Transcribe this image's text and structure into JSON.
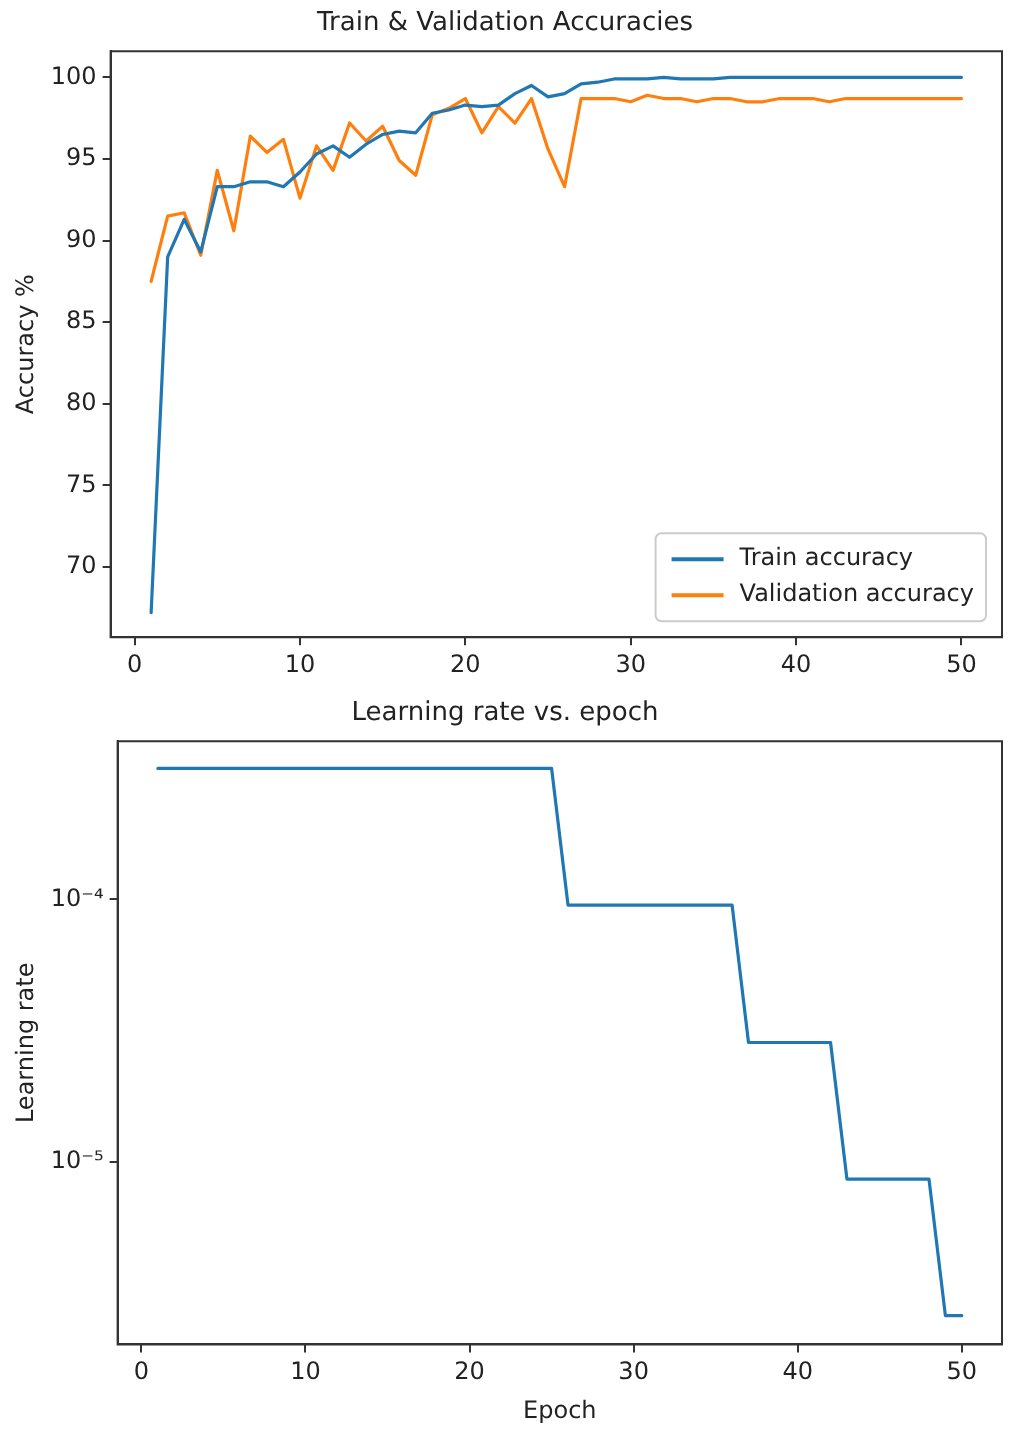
{
  "chart_data": [
    {
      "type": "line",
      "title": "Train & Validation Accuracies",
      "ylabel": "Accuracy %",
      "x": [
        1,
        2,
        3,
        4,
        5,
        6,
        7,
        8,
        9,
        10,
        11,
        12,
        13,
        14,
        15,
        16,
        17,
        18,
        19,
        20,
        21,
        22,
        23,
        24,
        25,
        26,
        27,
        28,
        29,
        30,
        31,
        32,
        33,
        34,
        35,
        36,
        37,
        38,
        39,
        40,
        41,
        42,
        43,
        44,
        45,
        46,
        47,
        48,
        49,
        50
      ],
      "series": [
        {
          "name": "Train accuracy",
          "color": "#1f77b4",
          "values": [
            67.2,
            89.0,
            91.3,
            89.3,
            93.3,
            93.3,
            93.6,
            93.6,
            93.3,
            94.2,
            95.3,
            95.8,
            95.1,
            95.9,
            96.5,
            96.7,
            96.6,
            97.8,
            98.0,
            98.3,
            98.2,
            98.3,
            99.0,
            99.5,
            98.8,
            99.0,
            99.6,
            99.7,
            99.9,
            99.9,
            99.9,
            100,
            99.9,
            99.9,
            99.9,
            100,
            100,
            100,
            100,
            100,
            100,
            100,
            100,
            100,
            100,
            100,
            100,
            100,
            100,
            100
          ]
        },
        {
          "name": "Validation accuracy",
          "color": "#ff7f0e",
          "values": [
            87.5,
            91.5,
            91.7,
            89.1,
            94.3,
            90.6,
            96.4,
            95.4,
            96.2,
            92.6,
            95.8,
            94.3,
            97.2,
            96.1,
            97.0,
            94.9,
            94.0,
            97.7,
            98.1,
            98.7,
            96.6,
            98.2,
            97.2,
            98.7,
            95.6,
            93.3,
            98.7,
            98.7,
            98.7,
            98.5,
            98.9,
            98.7,
            98.7,
            98.5,
            98.7,
            98.7,
            98.5,
            98.5,
            98.7,
            98.7,
            98.7,
            98.5,
            98.7,
            98.7,
            98.7,
            98.7,
            98.7,
            98.7,
            98.7,
            98.7
          ]
        }
      ],
      "xlim": [
        -1.45,
        52.45
      ],
      "xticks": [
        0,
        10,
        20,
        30,
        40,
        50
      ],
      "ylim": [
        65.7,
        101.6
      ],
      "yticks": [
        70,
        75,
        80,
        85,
        90,
        95,
        100
      ],
      "legend": "bottom right",
      "grid": false,
      "marker": "none",
      "line_style": "solid"
    },
    {
      "type": "line",
      "title": "Learning rate vs. epoch",
      "xlabel": "Epoch",
      "ylabel": "Learning rate",
      "log": "y",
      "x": [
        1,
        2,
        3,
        4,
        5,
        6,
        7,
        8,
        9,
        10,
        11,
        12,
        13,
        14,
        15,
        16,
        17,
        18,
        19,
        20,
        21,
        22,
        23,
        24,
        25,
        26,
        27,
        28,
        29,
        30,
        31,
        32,
        33,
        34,
        35,
        36,
        37,
        38,
        39,
        40,
        41,
        42,
        43,
        44,
        45,
        46,
        47,
        48,
        49,
        50
      ],
      "series": [
        {
          "color": "#1f77b4",
          "values": [
            0.000315,
            0.000315,
            0.000315,
            0.000315,
            0.000315,
            0.000315,
            0.000315,
            0.000315,
            0.000315,
            0.000315,
            0.000315,
            0.000315,
            0.000315,
            0.000315,
            0.000315,
            0.000315,
            0.000315,
            0.000315,
            0.000315,
            0.000315,
            0.000315,
            0.000315,
            0.000315,
            0.000315,
            0.000315,
            9.5e-05,
            9.5e-05,
            9.5e-05,
            9.5e-05,
            9.5e-05,
            9.5e-05,
            9.5e-05,
            9.5e-05,
            9.5e-05,
            9.5e-05,
            9.5e-05,
            2.85e-05,
            2.85e-05,
            2.85e-05,
            2.85e-05,
            2.85e-05,
            2.85e-05,
            8.6e-06,
            8.6e-06,
            8.6e-06,
            8.6e-06,
            8.6e-06,
            8.6e-06,
            2.6e-06,
            2.6e-06
          ]
        }
      ],
      "xlim": [
        -1.45,
        52.45
      ],
      "xticks": [
        0,
        10,
        20,
        30,
        40,
        50
      ],
      "ylim": [
        2.02e-06,
        0.0004
      ],
      "yticks": [
        {
          "value": 0.0001,
          "label": "10⁻⁴"
        },
        {
          "value": 1e-05,
          "label": "10⁻⁵"
        }
      ],
      "legend": false,
      "grid": false,
      "marker": "none",
      "line_style": "solid"
    }
  ]
}
